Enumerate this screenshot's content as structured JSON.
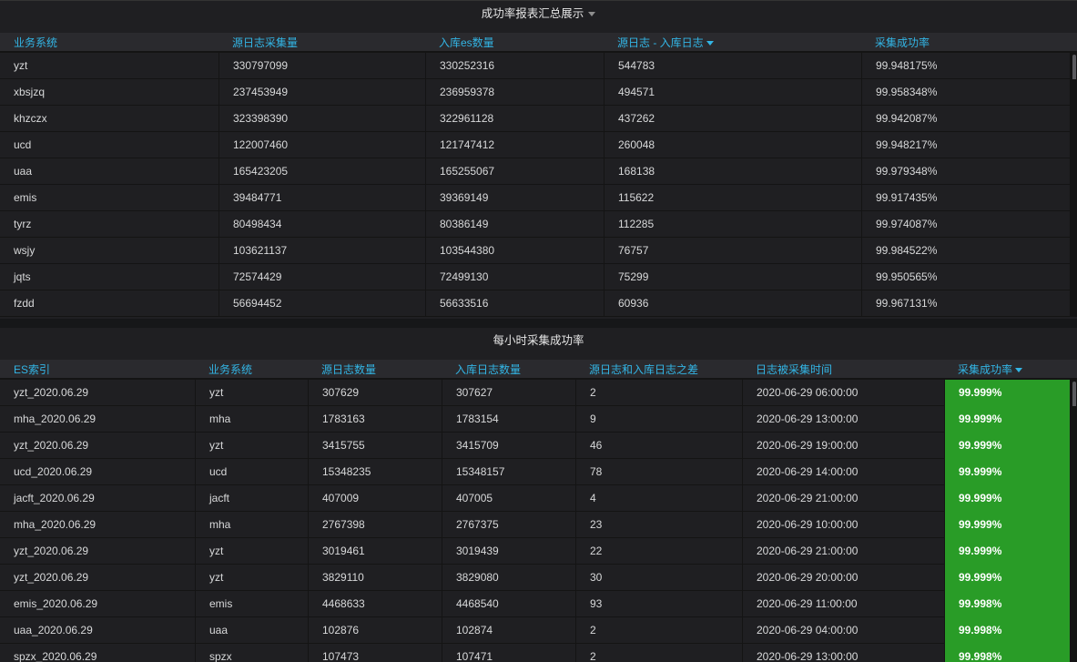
{
  "panel1": {
    "title": "成功率报表汇总展示",
    "headers": [
      "业务系统",
      "源日志采集量",
      "入库es数量",
      "源日志 - 入库日志",
      "采集成功率"
    ],
    "rows": [
      [
        "yzt",
        "330797099",
        "330252316",
        "544783",
        "99.948175%"
      ],
      [
        "xbsjzq",
        "237453949",
        "236959378",
        "494571",
        "99.958348%"
      ],
      [
        "khzczx",
        "323398390",
        "322961128",
        "437262",
        "99.942087%"
      ],
      [
        "ucd",
        "122007460",
        "121747412",
        "260048",
        "99.948217%"
      ],
      [
        "uaa",
        "165423205",
        "165255067",
        "168138",
        "99.979348%"
      ],
      [
        "emis",
        "39484771",
        "39369149",
        "115622",
        "99.917435%"
      ],
      [
        "tyrz",
        "80498434",
        "80386149",
        "112285",
        "99.974087%"
      ],
      [
        "wsjy",
        "103621137",
        "103544380",
        "76757",
        "99.984522%"
      ],
      [
        "jqts",
        "72574429",
        "72499130",
        "75299",
        "99.950565%"
      ],
      [
        "fzdd",
        "56694452",
        "56633516",
        "60936",
        "99.967131%"
      ]
    ]
  },
  "panel2": {
    "title": "每小时采集成功率",
    "headers": [
      "ES索引",
      "业务系统",
      "源日志数量",
      "入库日志数量",
      "源日志和入库日志之差",
      "日志被采集时间",
      "采集成功率"
    ],
    "rate_color": "#299c27",
    "rows": [
      [
        "yzt_2020.06.29",
        "yzt",
        "307629",
        "307627",
        "2",
        "2020-06-29 06:00:00",
        "99.999%"
      ],
      [
        "mha_2020.06.29",
        "mha",
        "1783163",
        "1783154",
        "9",
        "2020-06-29 13:00:00",
        "99.999%"
      ],
      [
        "yzt_2020.06.29",
        "yzt",
        "3415755",
        "3415709",
        "46",
        "2020-06-29 19:00:00",
        "99.999%"
      ],
      [
        "ucd_2020.06.29",
        "ucd",
        "15348235",
        "15348157",
        "78",
        "2020-06-29 14:00:00",
        "99.999%"
      ],
      [
        "jacft_2020.06.29",
        "jacft",
        "407009",
        "407005",
        "4",
        "2020-06-29 21:00:00",
        "99.999%"
      ],
      [
        "mha_2020.06.29",
        "mha",
        "2767398",
        "2767375",
        "23",
        "2020-06-29 10:00:00",
        "99.999%"
      ],
      [
        "yzt_2020.06.29",
        "yzt",
        "3019461",
        "3019439",
        "22",
        "2020-06-29 21:00:00",
        "99.999%"
      ],
      [
        "yzt_2020.06.29",
        "yzt",
        "3829110",
        "3829080",
        "30",
        "2020-06-29 20:00:00",
        "99.999%"
      ],
      [
        "emis_2020.06.29",
        "emis",
        "4468633",
        "4468540",
        "93",
        "2020-06-29 11:00:00",
        "99.998%"
      ],
      [
        "uaa_2020.06.29",
        "uaa",
        "102876",
        "102874",
        "2",
        "2020-06-29 04:00:00",
        "99.998%"
      ],
      [
        "spzx_2020.06.29",
        "spzx",
        "107473",
        "107471",
        "2",
        "2020-06-29 13:00:00",
        "99.998%"
      ]
    ]
  }
}
